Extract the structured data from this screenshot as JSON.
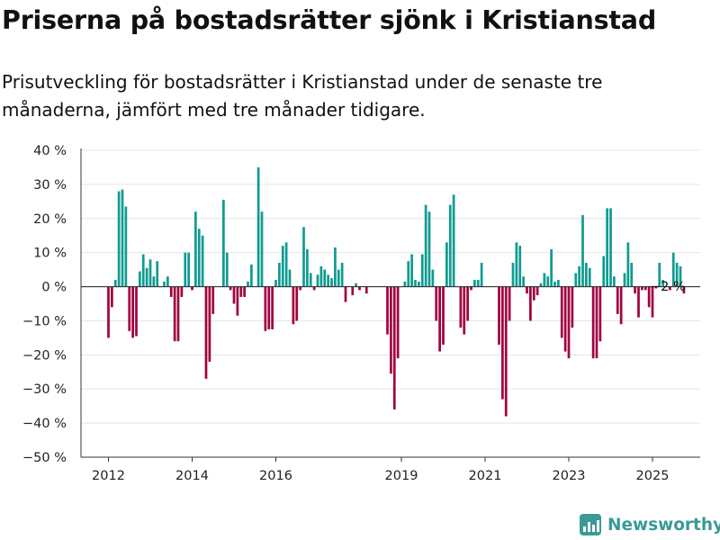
{
  "title": "Priserna på bostadsrätter sjönk i Kristianstad",
  "subtitle": "Prisutveckling för bostadsrätter i Kristianstad under de senaste tre månaderna, jämfört med tre månader tidigare.",
  "brand": {
    "name": "Newsworthy"
  },
  "colors": {
    "positive": "#0f9b91",
    "negative": "#a10040",
    "grid": "#e5e5e5",
    "axis": "#333333"
  },
  "chart_data": {
    "type": "bar",
    "title": "Priserna på bostadsrätter sjönk i Kristianstad",
    "ylim": [
      -50,
      40
    ],
    "yticks": [
      40,
      30,
      20,
      10,
      0,
      -10,
      -20,
      -30,
      -40,
      -50
    ],
    "ytick_labels": [
      "40 %",
      "30 %",
      "20 %",
      "10 %",
      "0 %",
      "−10 %",
      "−20 %",
      "−30 %",
      "−40 %",
      "−50 %"
    ],
    "xticks": [
      {
        "year": 2012,
        "label": "2012"
      },
      {
        "year": 2014,
        "label": "2014"
      },
      {
        "year": 2016,
        "label": "2016"
      },
      {
        "year": 2019,
        "label": "2019"
      },
      {
        "year": 2021,
        "label": "2021"
      },
      {
        "year": 2023,
        "label": "2023"
      },
      {
        "year": 2025,
        "label": "2025"
      }
    ],
    "x_start": "2012-01",
    "frequency": "monthly",
    "grid": "horizontal",
    "end_label": "−2 %",
    "values": [
      -15,
      -6,
      2,
      28,
      28.5,
      23.5,
      -13,
      -15,
      -14.5,
      4.5,
      9.5,
      5.5,
      8,
      3,
      7.5,
      0,
      1.5,
      3,
      -3,
      -16,
      -16,
      -3,
      10,
      10,
      -1,
      22,
      17,
      15,
      -27,
      -22,
      -8,
      0,
      0,
      25.5,
      10,
      -1,
      -5,
      -8.5,
      -3,
      -3,
      1.5,
      6.5,
      0,
      35,
      22,
      -13,
      -12.5,
      -12.5,
      2,
      7,
      12,
      13,
      5,
      -11,
      -10,
      -1,
      17.5,
      11,
      4,
      -1,
      3.5,
      6,
      5,
      3.5,
      2.5,
      11.5,
      5,
      7,
      -4.5,
      0,
      -2.5,
      1,
      -1,
      0,
      -2,
      0,
      0,
      0,
      0,
      0,
      -14,
      -25.5,
      -36,
      -21,
      0,
      1.5,
      7.5,
      9.5,
      2,
      1.5,
      9.5,
      24,
      22,
      5,
      -10,
      -19,
      -17,
      13,
      24,
      27,
      0,
      -12,
      -14,
      -10,
      -1,
      2,
      2,
      7,
      0,
      0,
      0,
      0,
      -17,
      -33,
      -38,
      -10,
      7,
      13,
      12,
      3,
      -2,
      -10,
      -4,
      -2.5,
      1,
      4,
      3,
      11,
      1.5,
      2,
      -15,
      -19,
      -21,
      -12,
      4,
      6,
      21,
      7,
      5.5,
      -21,
      -21,
      -16,
      9,
      23,
      23,
      3,
      -8,
      -11,
      4,
      13,
      7,
      -2,
      -9,
      -1,
      -1,
      -6,
      -9,
      -0.5,
      7,
      2,
      0,
      -1,
      10,
      7,
      6,
      -2
    ]
  }
}
